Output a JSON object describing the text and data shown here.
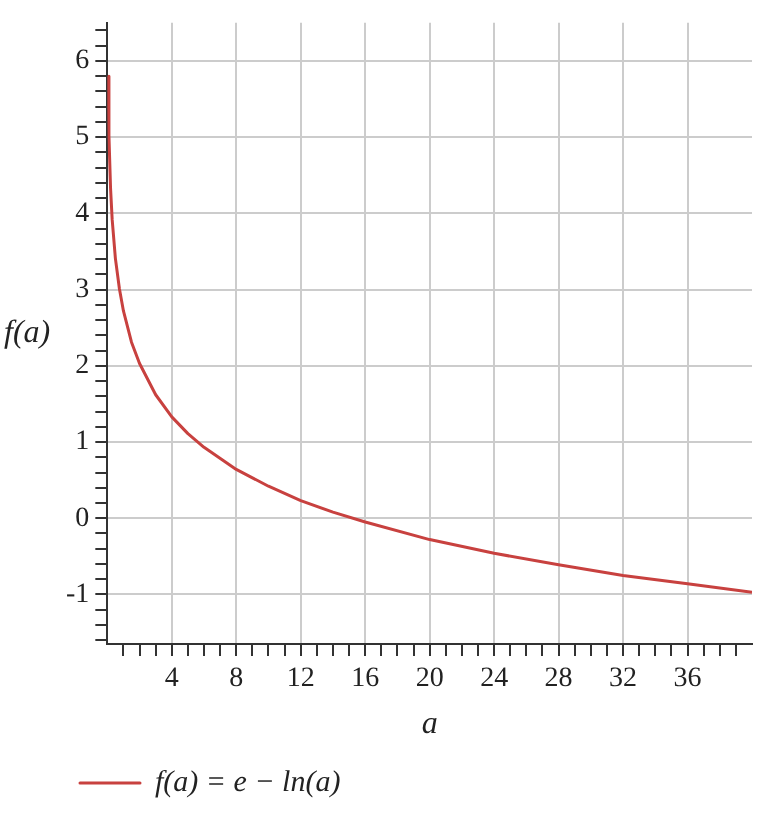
{
  "chart_data": {
    "type": "line",
    "xlabel": "a",
    "ylabel": "f(a)",
    "xlim": [
      0,
      40
    ],
    "ylim": [
      -1.65,
      6.5
    ],
    "xticks": [
      {
        "value": 1,
        "label": null
      },
      {
        "value": 2,
        "label": null
      },
      {
        "value": 3,
        "label": null
      },
      4,
      {
        "value": 5,
        "label": null
      },
      {
        "value": 6,
        "label": null
      },
      {
        "value": 7,
        "label": null
      },
      8,
      {
        "value": 9,
        "label": null
      },
      {
        "value": 10,
        "label": null
      },
      {
        "value": 11,
        "label": null
      },
      12,
      {
        "value": 13,
        "label": null
      },
      {
        "value": 14,
        "label": null
      },
      {
        "value": 15,
        "label": null
      },
      16,
      {
        "value": 17,
        "label": null
      },
      {
        "value": 18,
        "label": null
      },
      {
        "value": 19,
        "label": null
      },
      20,
      {
        "value": 21,
        "label": null
      },
      {
        "value": 22,
        "label": null
      },
      {
        "value": 23,
        "label": null
      },
      24,
      {
        "value": 25,
        "label": null
      },
      {
        "value": 26,
        "label": null
      },
      {
        "value": 27,
        "label": null
      },
      28,
      {
        "value": 29,
        "label": null
      },
      {
        "value": 30,
        "label": null
      },
      {
        "value": 31,
        "label": null
      },
      32,
      {
        "value": 33,
        "label": null
      },
      {
        "value": 34,
        "label": null
      },
      {
        "value": 35,
        "label": null
      },
      36,
      {
        "value": 37,
        "label": null
      },
      {
        "value": 38,
        "label": null
      },
      {
        "value": 39,
        "label": null
      }
    ],
    "yticks": [
      {
        "value": -1.6,
        "label": null
      },
      {
        "value": -1.4,
        "label": null
      },
      {
        "value": -1.2,
        "label": null
      },
      -1,
      {
        "value": -0.8,
        "label": null
      },
      {
        "value": -0.6,
        "label": null
      },
      {
        "value": -0.4,
        "label": null
      },
      {
        "value": -0.2,
        "label": null
      },
      0,
      {
        "value": 0.2,
        "label": null
      },
      {
        "value": 0.4,
        "label": null
      },
      {
        "value": 0.6,
        "label": null
      },
      {
        "value": 0.8,
        "label": null
      },
      1,
      {
        "value": 1.2,
        "label": null
      },
      {
        "value": 1.4,
        "label": null
      },
      {
        "value": 1.6,
        "label": null
      },
      {
        "value": 1.8,
        "label": null
      },
      2,
      {
        "value": 2.2,
        "label": null
      },
      {
        "value": 2.4,
        "label": null
      },
      {
        "value": 2.6,
        "label": null
      },
      {
        "value": 2.8,
        "label": null
      },
      3,
      {
        "value": 3.2,
        "label": null
      },
      {
        "value": 3.4,
        "label": null
      },
      {
        "value": 3.6,
        "label": null
      },
      {
        "value": 3.8,
        "label": null
      },
      4,
      {
        "value": 4.2,
        "label": null
      },
      {
        "value": 4.4,
        "label": null
      },
      {
        "value": 4.6,
        "label": null
      },
      {
        "value": 4.8,
        "label": null
      },
      5,
      {
        "value": 5.2,
        "label": null
      },
      {
        "value": 5.4,
        "label": null
      },
      {
        "value": 5.6,
        "label": null
      },
      {
        "value": 5.8,
        "label": null
      },
      6,
      {
        "value": 6.2,
        "label": null
      },
      {
        "value": 6.4,
        "label": null
      }
    ],
    "grid": true,
    "legend": "bottom left",
    "marker": "none",
    "x": [
      0.046,
      0.1,
      0.2,
      0.3,
      0.5,
      0.75,
      1,
      1.5,
      2,
      3,
      4,
      5,
      6,
      8,
      10,
      12,
      14,
      16,
      20,
      24,
      28,
      32,
      36,
      40
    ],
    "series": [
      {
        "name": "f(a) = e − ln(a)",
        "color": "#c8413f",
        "values": [
          5.8,
          5.02,
          4.33,
          3.92,
          3.41,
          3.01,
          2.72,
          2.31,
          2.03,
          1.62,
          1.33,
          1.11,
          0.93,
          0.64,
          0.42,
          0.23,
          0.08,
          -0.05,
          -0.28,
          -0.46,
          -0.61,
          -0.75,
          -0.86,
          -0.97
        ]
      }
    ]
  }
}
